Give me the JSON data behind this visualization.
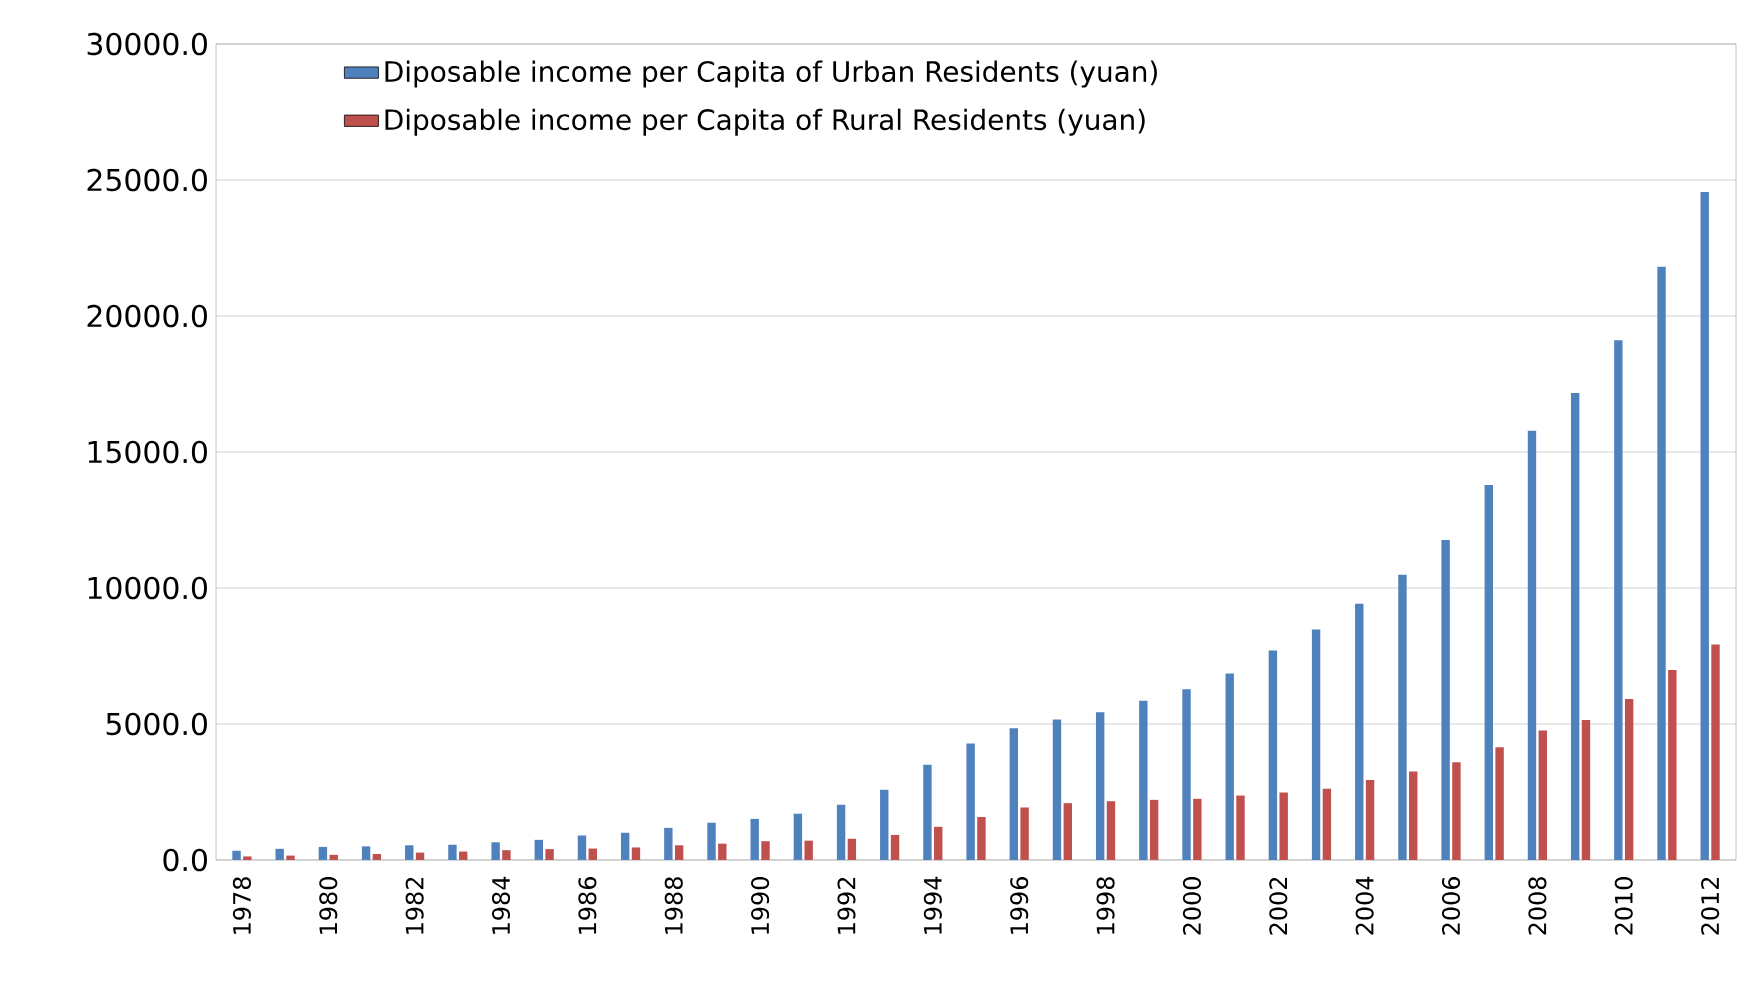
{
  "chart_data": {
    "type": "bar",
    "categories": [
      "1978",
      null,
      "1980",
      null,
      "1982",
      null,
      "1984",
      null,
      "1986",
      null,
      "1988",
      null,
      "1990",
      null,
      "1992",
      null,
      "1994",
      null,
      "1996",
      null,
      "1998",
      null,
      "2000",
      null,
      "2002",
      null,
      "2004",
      null,
      "2006",
      null,
      "2008",
      null,
      "2010",
      null,
      "2012"
    ],
    "series": [
      {
        "name": "Diposable income per Capita of Urban Residents (yuan)",
        "color": "#4f81bd",
        "values": [
          340,
          410,
          480,
          500,
          540,
          560,
          650,
          740,
          900,
          1000,
          1180,
          1370,
          1510,
          1700,
          2030,
          2580,
          3500,
          4280,
          4840,
          5160,
          5430,
          5850,
          6280,
          6860,
          7700,
          8470,
          9420,
          10490,
          11760,
          13790,
          15780,
          17170,
          19110,
          21810,
          24560
        ]
      },
      {
        "name": "Diposable income per Capita of Rural Residents (yuan)",
        "color": "#c0504d",
        "values": [
          130,
          160,
          190,
          220,
          270,
          310,
          360,
          400,
          420,
          460,
          540,
          600,
          690,
          710,
          780,
          920,
          1220,
          1580,
          1930,
          2090,
          2160,
          2210,
          2250,
          2370,
          2480,
          2620,
          2940,
          3250,
          3590,
          4140,
          4760,
          5150,
          5920,
          6980,
          7920
        ]
      }
    ],
    "ylim": [
      0,
      30000
    ],
    "yticks": [
      {
        "value": 0,
        "label": "0.0"
      },
      {
        "value": 5000,
        "label": "5000.0"
      },
      {
        "value": 10000,
        "label": "10000.0"
      },
      {
        "value": 15000,
        "label": "15000.0"
      },
      {
        "value": 20000,
        "label": "20000.0"
      },
      {
        "value": 25000,
        "label": "25000.0"
      },
      {
        "value": 30000,
        "label": "30000.0"
      }
    ],
    "grid": "y",
    "legend": "top"
  }
}
